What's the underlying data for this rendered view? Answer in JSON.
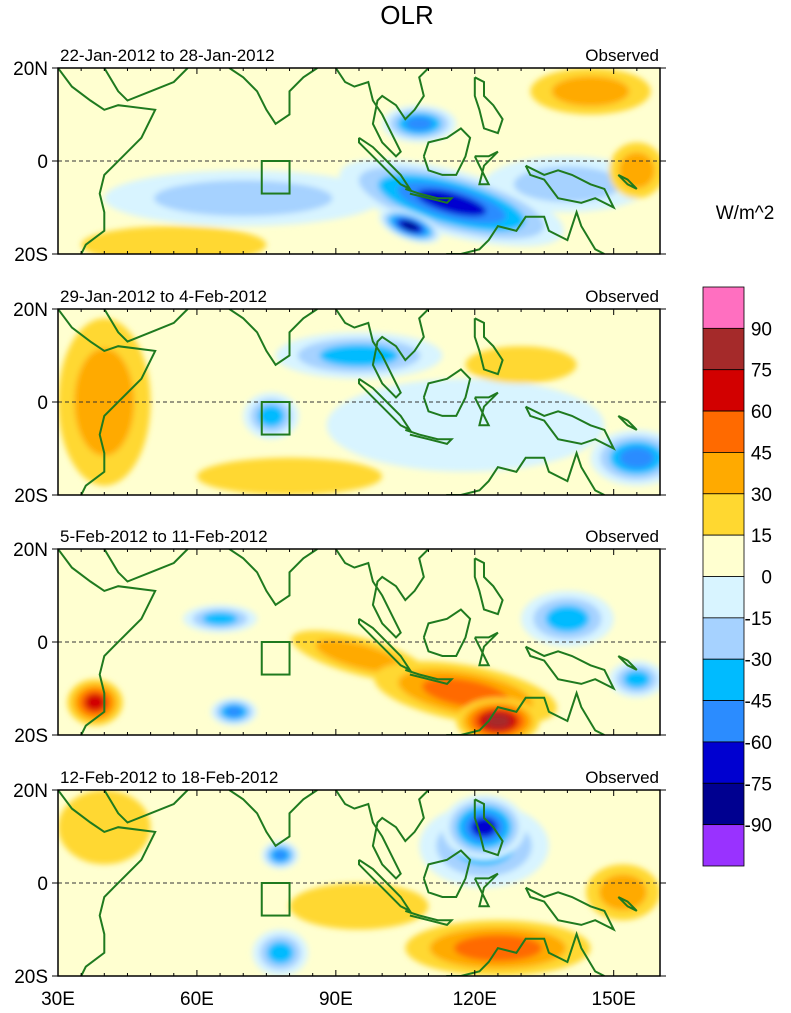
{
  "chart_data": {
    "type": "heatmap",
    "title": "OLR",
    "units": "W/m^2",
    "x_ticks": [
      "30E",
      "60E",
      "90E",
      "120E",
      "150E"
    ],
    "x_tick_values": [
      30,
      60,
      90,
      120,
      150
    ],
    "xlim": [
      30,
      160
    ],
    "y_ticks": [
      "20N",
      "0",
      "20S"
    ],
    "y_tick_values": [
      20,
      0,
      -20
    ],
    "ylim": [
      -20,
      20
    ],
    "colorbar": {
      "levels": [
        "90",
        "75",
        "60",
        "45",
        "30",
        "15",
        "0",
        "-15",
        "-30",
        "-45",
        "-60",
        "-75",
        "-90"
      ],
      "colors": [
        "#ff6fc0",
        "#a52a2a",
        "#d20000",
        "#ff6a00",
        "#ffaa00",
        "#ffd830",
        "#ffffd0",
        "#d8f4ff",
        "#a6d2ff",
        "#00bbff",
        "#2b8cff",
        "#0000d0",
        "#000090",
        "#9932ff"
      ]
    },
    "box_region": {
      "lon": [
        74,
        80
      ],
      "lat": [
        -7,
        0
      ]
    },
    "panels": [
      {
        "period": "22-Jan-2012 to 28-Jan-2012",
        "label": "Observed",
        "features": [
          {
            "lon": 115,
            "lat": -9,
            "value": -75,
            "rx": 25,
            "ry": 7,
            "rot": 15
          },
          {
            "lon": 106,
            "lat": -14,
            "value": -90,
            "rx": 7,
            "ry": 3,
            "rot": 20
          },
          {
            "lon": 108,
            "lat": 8,
            "value": -60,
            "rx": 8,
            "ry": 4,
            "rot": 0
          },
          {
            "lon": 70,
            "lat": -8,
            "value": -30,
            "rx": 30,
            "ry": 6,
            "rot": 0
          },
          {
            "lon": 140,
            "lat": -5,
            "value": -30,
            "rx": 18,
            "ry": 6,
            "rot": 0
          },
          {
            "lon": 145,
            "lat": 15,
            "value": 30,
            "rx": 13,
            "ry": 5,
            "rot": 0
          },
          {
            "lon": 55,
            "lat": -18,
            "value": 15,
            "rx": 20,
            "ry": 4,
            "rot": 0
          },
          {
            "lon": 155,
            "lat": -2,
            "value": 30,
            "rx": 6,
            "ry": 6,
            "rot": 0
          }
        ]
      },
      {
        "period": "29-Jan-2012 to 4-Feb-2012",
        "label": "Observed",
        "features": [
          {
            "lon": 95,
            "lat": 10,
            "value": -45,
            "rx": 18,
            "ry": 5,
            "rot": 0
          },
          {
            "lon": 76,
            "lat": -3,
            "value": -45,
            "rx": 6,
            "ry": 5,
            "rot": 0
          },
          {
            "lon": 155,
            "lat": -12,
            "value": -60,
            "rx": 10,
            "ry": 6,
            "rot": 0
          },
          {
            "lon": 118,
            "lat": -5,
            "value": -15,
            "rx": 30,
            "ry": 10,
            "rot": 0
          },
          {
            "lon": 40,
            "lat": 0,
            "value": 30,
            "rx": 10,
            "ry": 18,
            "rot": 0
          },
          {
            "lon": 130,
            "lat": 8,
            "value": 15,
            "rx": 12,
            "ry": 4,
            "rot": 0
          },
          {
            "lon": 80,
            "lat": -16,
            "value": 15,
            "rx": 20,
            "ry": 4,
            "rot": 0
          }
        ]
      },
      {
        "period": "5-Feb-2012 to 11-Feb-2012",
        "label": "Observed",
        "features": [
          {
            "lon": 125,
            "lat": -17,
            "value": 75,
            "rx": 9,
            "ry": 5,
            "rot": 0
          },
          {
            "lon": 118,
            "lat": -11,
            "value": 45,
            "rx": 20,
            "ry": 6,
            "rot": 10
          },
          {
            "lon": 95,
            "lat": -3,
            "value": 30,
            "rx": 15,
            "ry": 4,
            "rot": 15
          },
          {
            "lon": 38,
            "lat": -13,
            "value": 60,
            "rx": 6,
            "ry": 5,
            "rot": 0
          },
          {
            "lon": 140,
            "lat": 5,
            "value": -45,
            "rx": 10,
            "ry": 6,
            "rot": 0
          },
          {
            "lon": 65,
            "lat": 5,
            "value": -45,
            "rx": 8,
            "ry": 3,
            "rot": 0
          },
          {
            "lon": 68,
            "lat": -15,
            "value": -60,
            "rx": 5,
            "ry": 3,
            "rot": 0
          },
          {
            "lon": 155,
            "lat": -8,
            "value": -45,
            "rx": 6,
            "ry": 4,
            "rot": 0
          }
        ]
      },
      {
        "period": "12-Feb-2012 to 18-Feb-2012",
        "label": "Observed",
        "features": [
          {
            "lon": 122,
            "lat": 12,
            "value": -75,
            "rx": 9,
            "ry": 7,
            "rot": 0
          },
          {
            "lon": 122,
            "lat": 8,
            "value": -45,
            "rx": 14,
            "ry": 9,
            "rot": 0
          },
          {
            "lon": 78,
            "lat": -15,
            "value": -45,
            "rx": 6,
            "ry": 5,
            "rot": 0
          },
          {
            "lon": 78,
            "lat": 6,
            "value": -60,
            "rx": 4,
            "ry": 3,
            "rot": 0
          },
          {
            "lon": 125,
            "lat": -14,
            "value": 45,
            "rx": 20,
            "ry": 6,
            "rot": 0
          },
          {
            "lon": 152,
            "lat": -2,
            "value": 30,
            "rx": 8,
            "ry": 6,
            "rot": 0
          },
          {
            "lon": 40,
            "lat": 12,
            "value": 15,
            "rx": 10,
            "ry": 8,
            "rot": 0
          },
          {
            "lon": 95,
            "lat": -5,
            "value": 15,
            "rx": 15,
            "ry": 5,
            "rot": 0
          }
        ]
      }
    ]
  }
}
